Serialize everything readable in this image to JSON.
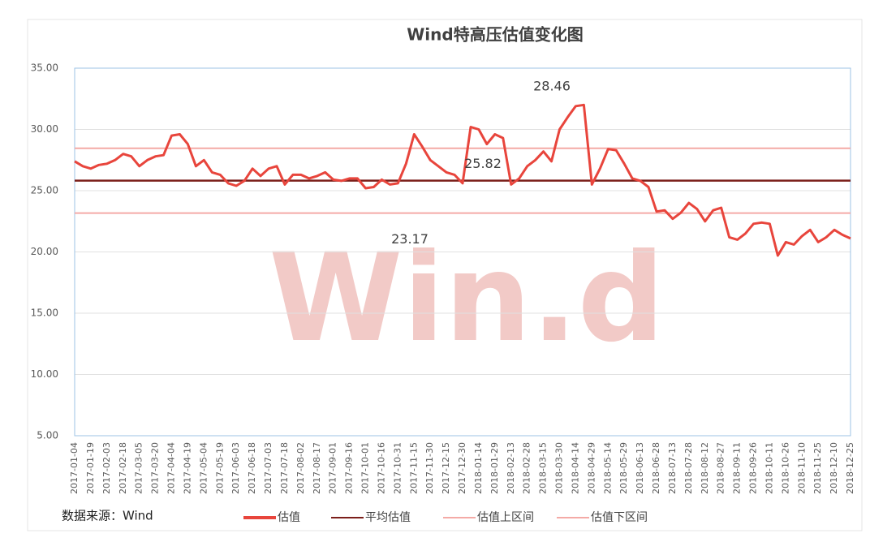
{
  "chart_data": {
    "type": "line",
    "title": "Wind特高压估值变化图",
    "source": "数据来源：Wind",
    "watermark": "Win.d",
    "categories": [
      "2017-01-04",
      null,
      "2017-01-19",
      null,
      "2017-02-03",
      null,
      "2017-02-18",
      null,
      "2017-03-05",
      null,
      "2017-03-20",
      null,
      "2017-04-04",
      null,
      "2017-04-19",
      null,
      "2017-05-04",
      null,
      "2017-05-19",
      null,
      "2017-06-03",
      null,
      "2017-06-18",
      null,
      "2017-07-03",
      null,
      "2017-07-18",
      null,
      "2017-08-02",
      null,
      "2017-08-17",
      null,
      "2017-09-01",
      null,
      "2017-09-16",
      null,
      "2017-10-01",
      null,
      "2017-10-16",
      null,
      "2017-10-31",
      null,
      "2017-11-15",
      null,
      "2017-11-30",
      null,
      "2017-12-15",
      null,
      "2017-12-30",
      null,
      "2018-01-14",
      null,
      "2018-01-29",
      null,
      "2018-02-13",
      null,
      "2018-02-28",
      null,
      "2018-03-15",
      null,
      "2018-03-30",
      null,
      "2018-04-14",
      null,
      "2018-04-29",
      null,
      "2018-05-14",
      null,
      "2018-05-29",
      null,
      "2018-06-13",
      null,
      "2018-06-28",
      null,
      "2018-07-13",
      null,
      "2018-07-28",
      null,
      "2018-08-12",
      null,
      "2018-08-27",
      null,
      "2018-09-11",
      null,
      "2018-09-26",
      null,
      "2018-10-11",
      null,
      "2018-10-26",
      null,
      "2018-11-10",
      null,
      "2018-11-25",
      null,
      "2018-12-10",
      null,
      "2018-12-25"
    ],
    "series": [
      {
        "name": "估值",
        "color": "#e8453c",
        "values": [
          27.4,
          27.0,
          26.8,
          27.1,
          27.2,
          27.5,
          28.0,
          27.8,
          27.0,
          27.5,
          27.8,
          27.9,
          29.5,
          29.6,
          28.8,
          27.0,
          27.5,
          26.5,
          26.3,
          25.6,
          25.4,
          25.8,
          26.8,
          26.2,
          26.8,
          27.0,
          25.5,
          26.3,
          26.3,
          26.0,
          26.2,
          26.5,
          25.9,
          25.8,
          26.0,
          26.0,
          25.2,
          25.3,
          25.9,
          25.5,
          25.6,
          27.2,
          29.6,
          28.6,
          27.5,
          27.0,
          26.5,
          26.3,
          25.6,
          30.2,
          30.0,
          28.8,
          29.6,
          29.3,
          25.5,
          26.0,
          27.0,
          27.5,
          28.2,
          27.4,
          30.0,
          31.0,
          31.9,
          32.0,
          25.5,
          26.8,
          28.4,
          28.3,
          27.2,
          26.0,
          25.8,
          25.3,
          23.3,
          23.4,
          22.7,
          23.2,
          24.0,
          23.5,
          22.5,
          23.4,
          23.6,
          21.2,
          21.0,
          21.5,
          22.3,
          22.4,
          22.3,
          19.7,
          20.8,
          20.6,
          21.3,
          21.8,
          20.8,
          21.2,
          21.8,
          21.4,
          21.1
        ]
      }
    ],
    "hlines": [
      {
        "name": "平均估值",
        "color": "#7b1f1a",
        "value": 25.82
      },
      {
        "name": "估值上区间",
        "color": "#f4aaa6",
        "value": 28.46
      },
      {
        "name": "估值下区间",
        "color": "#f4aaa6",
        "value": 23.17
      }
    ],
    "ylim": [
      5,
      35
    ],
    "yticks": [
      {
        "value": 5,
        "label": "5.00"
      },
      {
        "value": 10,
        "label": "10.00"
      },
      {
        "value": 15,
        "label": "15.00"
      },
      {
        "value": 20,
        "label": "20.00"
      },
      {
        "value": 25,
        "label": "25.00"
      },
      {
        "value": 30,
        "label": "30.00"
      },
      {
        "value": 35,
        "label": "35.00"
      }
    ],
    "grid": true
  }
}
